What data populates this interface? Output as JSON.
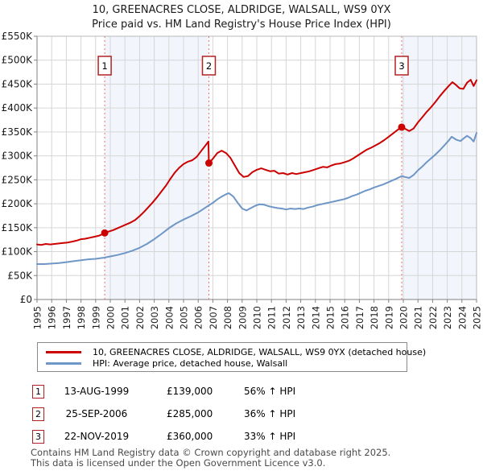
{
  "title": "10, GREENACRES CLOSE, ALDRIDGE, WALSALL, WS9 0YX",
  "subtitle": "Price paid vs. HM Land Registry's House Price Index (HPI)",
  "colors": {
    "property_line": "#cc0000",
    "hpi_line": "#6e96c6",
    "sale_marker_line": "#e8736c",
    "sale_marker_box_border": "#b22222",
    "shaded_region": "#f2f5fb",
    "grid": "#d6d6d6",
    "axis": "#808080",
    "plot_border": "#b8b8b8"
  },
  "chart_data": {
    "type": "line",
    "title": "Price paid vs. HM Land Registry's House Price Index (HPI)",
    "x_range": [
      1995,
      2025
    ],
    "y_range": [
      0,
      550
    ],
    "y_unit": "GBP thousands",
    "grid": true,
    "legend_position": "bottom",
    "y_ticks": [
      0,
      50,
      100,
      150,
      200,
      250,
      300,
      350,
      400,
      450,
      500,
      550
    ],
    "y_tick_labels": [
      "£0",
      "£50K",
      "£100K",
      "£150K",
      "£200K",
      "£250K",
      "£300K",
      "£350K",
      "£400K",
      "£450K",
      "£500K",
      "£550K"
    ],
    "x_ticks": [
      1995,
      1996,
      1997,
      1998,
      1999,
      2000,
      2001,
      2002,
      2003,
      2004,
      2005,
      2006,
      2007,
      2008,
      2009,
      2010,
      2011,
      2012,
      2013,
      2014,
      2015,
      2016,
      2017,
      2018,
      2019,
      2020,
      2021,
      2022,
      2023,
      2024,
      2025
    ],
    "x_tick_labels": [
      "1995",
      "1996",
      "1997",
      "1998",
      "1999",
      "2000",
      "2001",
      "2002",
      "2003",
      "2004",
      "2005",
      "2006",
      "2007",
      "2008",
      "2009",
      "2010",
      "2011",
      "2012",
      "2013",
      "2014",
      "2015",
      "2016",
      "2017",
      "2018",
      "2019",
      "2020",
      "2021",
      "2022",
      "2023",
      "2024",
      "2025"
    ],
    "shaded_regions": [
      [
        1999.62,
        2006.73
      ],
      [
        2019.89,
        2025
      ]
    ],
    "sales": [
      {
        "label": "1",
        "x": 1999.62,
        "y": 139
      },
      {
        "label": "2",
        "x": 2006.73,
        "y": 285
      },
      {
        "label": "3",
        "x": 2019.89,
        "y": 360
      }
    ],
    "series": [
      {
        "name": "property",
        "color": "#cc0000",
        "points": [
          [
            1995.0,
            115
          ],
          [
            1995.3,
            114
          ],
          [
            1995.6,
            116
          ],
          [
            1995.9,
            115
          ],
          [
            1996.2,
            116
          ],
          [
            1996.5,
            117
          ],
          [
            1996.8,
            118
          ],
          [
            1997.1,
            119
          ],
          [
            1997.4,
            121
          ],
          [
            1997.7,
            123
          ],
          [
            1998.0,
            126
          ],
          [
            1998.3,
            127
          ],
          [
            1998.6,
            129
          ],
          [
            1998.9,
            131
          ],
          [
            1999.2,
            133
          ],
          [
            1999.45,
            136
          ],
          [
            1999.62,
            139
          ],
          [
            1999.9,
            142
          ],
          [
            2000.2,
            145
          ],
          [
            2000.5,
            149
          ],
          [
            2000.8,
            153
          ],
          [
            2001.1,
            157
          ],
          [
            2001.4,
            161
          ],
          [
            2001.7,
            166
          ],
          [
            2002.0,
            174
          ],
          [
            2002.3,
            183
          ],
          [
            2002.6,
            193
          ],
          [
            2002.9,
            203
          ],
          [
            2003.2,
            214
          ],
          [
            2003.5,
            226
          ],
          [
            2003.8,
            238
          ],
          [
            2004.1,
            252
          ],
          [
            2004.4,
            265
          ],
          [
            2004.7,
            275
          ],
          [
            2005.0,
            283
          ],
          [
            2005.3,
            288
          ],
          [
            2005.6,
            291
          ],
          [
            2005.9,
            298
          ],
          [
            2006.2,
            310
          ],
          [
            2006.5,
            322
          ],
          [
            2006.7,
            330
          ],
          [
            2006.73,
            285
          ],
          [
            2007.0,
            294
          ],
          [
            2007.3,
            306
          ],
          [
            2007.6,
            311
          ],
          [
            2007.9,
            306
          ],
          [
            2008.2,
            296
          ],
          [
            2008.5,
            280
          ],
          [
            2008.8,
            264
          ],
          [
            2009.1,
            256
          ],
          [
            2009.4,
            258
          ],
          [
            2009.7,
            266
          ],
          [
            2010.0,
            271
          ],
          [
            2010.3,
            274
          ],
          [
            2010.6,
            271
          ],
          [
            2010.9,
            268
          ],
          [
            2011.2,
            269
          ],
          [
            2011.5,
            263
          ],
          [
            2011.8,
            264
          ],
          [
            2012.1,
            261
          ],
          [
            2012.4,
            264
          ],
          [
            2012.7,
            262
          ],
          [
            2013.0,
            264
          ],
          [
            2013.3,
            266
          ],
          [
            2013.6,
            268
          ],
          [
            2013.9,
            271
          ],
          [
            2014.2,
            274
          ],
          [
            2014.5,
            277
          ],
          [
            2014.8,
            276
          ],
          [
            2015.1,
            280
          ],
          [
            2015.4,
            283
          ],
          [
            2015.7,
            284
          ],
          [
            2016.0,
            287
          ],
          [
            2016.3,
            290
          ],
          [
            2016.6,
            295
          ],
          [
            2016.9,
            301
          ],
          [
            2017.2,
            307
          ],
          [
            2017.5,
            313
          ],
          [
            2017.8,
            317
          ],
          [
            2018.1,
            322
          ],
          [
            2018.4,
            327
          ],
          [
            2018.7,
            333
          ],
          [
            2019.0,
            340
          ],
          [
            2019.3,
            347
          ],
          [
            2019.6,
            354
          ],
          [
            2019.89,
            360
          ],
          [
            2020.1,
            357
          ],
          [
            2020.4,
            352
          ],
          [
            2020.7,
            357
          ],
          [
            2021.0,
            370
          ],
          [
            2021.3,
            381
          ],
          [
            2021.6,
            392
          ],
          [
            2021.9,
            402
          ],
          [
            2022.2,
            413
          ],
          [
            2022.5,
            425
          ],
          [
            2022.8,
            436
          ],
          [
            2023.1,
            446
          ],
          [
            2023.35,
            454
          ],
          [
            2023.6,
            448
          ],
          [
            2023.85,
            441
          ],
          [
            2024.1,
            440
          ],
          [
            2024.35,
            453
          ],
          [
            2024.6,
            459
          ],
          [
            2024.8,
            446
          ],
          [
            2025.0,
            458
          ]
        ]
      },
      {
        "name": "hpi",
        "color": "#6e96c6",
        "points": [
          [
            1995.0,
            74
          ],
          [
            1995.5,
            74
          ],
          [
            1996.0,
            75
          ],
          [
            1996.5,
            76
          ],
          [
            1997.0,
            78
          ],
          [
            1997.5,
            80
          ],
          [
            1998.0,
            82
          ],
          [
            1998.5,
            84
          ],
          [
            1999.0,
            85
          ],
          [
            1999.5,
            87
          ],
          [
            2000.0,
            90
          ],
          [
            2000.5,
            93
          ],
          [
            2001.0,
            97
          ],
          [
            2001.5,
            102
          ],
          [
            2002.0,
            108
          ],
          [
            2002.5,
            116
          ],
          [
            2003.0,
            126
          ],
          [
            2003.5,
            137
          ],
          [
            2004.0,
            149
          ],
          [
            2004.5,
            159
          ],
          [
            2005.0,
            167
          ],
          [
            2005.5,
            174
          ],
          [
            2006.0,
            182
          ],
          [
            2006.5,
            192
          ],
          [
            2007.0,
            202
          ],
          [
            2007.3,
            209
          ],
          [
            2007.6,
            215
          ],
          [
            2007.9,
            220
          ],
          [
            2008.1,
            222
          ],
          [
            2008.4,
            215
          ],
          [
            2008.7,
            202
          ],
          [
            2009.0,
            190
          ],
          [
            2009.3,
            186
          ],
          [
            2009.6,
            191
          ],
          [
            2009.9,
            196
          ],
          [
            2010.2,
            199
          ],
          [
            2010.5,
            198
          ],
          [
            2010.8,
            195
          ],
          [
            2011.1,
            193
          ],
          [
            2011.4,
            191
          ],
          [
            2011.7,
            190
          ],
          [
            2012.0,
            188
          ],
          [
            2012.3,
            190
          ],
          [
            2012.6,
            189
          ],
          [
            2012.9,
            190
          ],
          [
            2013.2,
            189
          ],
          [
            2013.5,
            192
          ],
          [
            2013.8,
            194
          ],
          [
            2014.1,
            197
          ],
          [
            2014.4,
            199
          ],
          [
            2014.7,
            201
          ],
          [
            2015.0,
            203
          ],
          [
            2015.3,
            205
          ],
          [
            2015.6,
            207
          ],
          [
            2015.9,
            209
          ],
          [
            2016.2,
            212
          ],
          [
            2016.5,
            216
          ],
          [
            2016.8,
            219
          ],
          [
            2017.1,
            223
          ],
          [
            2017.4,
            227
          ],
          [
            2017.7,
            230
          ],
          [
            2018.0,
            234
          ],
          [
            2018.3,
            237
          ],
          [
            2018.6,
            240
          ],
          [
            2018.9,
            244
          ],
          [
            2019.2,
            248
          ],
          [
            2019.5,
            252
          ],
          [
            2019.89,
            258
          ],
          [
            2020.1,
            256
          ],
          [
            2020.4,
            254
          ],
          [
            2020.7,
            260
          ],
          [
            2021.0,
            270
          ],
          [
            2021.3,
            278
          ],
          [
            2021.6,
            287
          ],
          [
            2021.9,
            295
          ],
          [
            2022.2,
            303
          ],
          [
            2022.5,
            312
          ],
          [
            2022.8,
            322
          ],
          [
            2023.1,
            332
          ],
          [
            2023.3,
            340
          ],
          [
            2023.6,
            334
          ],
          [
            2023.9,
            331
          ],
          [
            2024.1,
            336
          ],
          [
            2024.35,
            342
          ],
          [
            2024.6,
            337
          ],
          [
            2024.8,
            330
          ],
          [
            2025.0,
            348
          ]
        ]
      }
    ]
  },
  "legend": {
    "items": [
      {
        "label": "10, GREENACRES CLOSE, ALDRIDGE, WALSALL, WS9 0YX (detached house)",
        "color": "#cc0000"
      },
      {
        "label": "HPI: Average price, detached house, Walsall",
        "color": "#6e96c6"
      }
    ]
  },
  "transactions": [
    {
      "num": "1",
      "date": "13-AUG-1999",
      "price": "£139,000",
      "vs_hpi": "56% ↑ HPI"
    },
    {
      "num": "2",
      "date": "25-SEP-2006",
      "price": "£285,000",
      "vs_hpi": "36% ↑ HPI"
    },
    {
      "num": "3",
      "date": "22-NOV-2019",
      "price": "£360,000",
      "vs_hpi": "33% ↑ HPI"
    }
  ],
  "footer": {
    "line1": "Contains HM Land Registry data © Crown copyright and database right 2025.",
    "line2": "This data is licensed under the Open Government Licence v3.0."
  }
}
